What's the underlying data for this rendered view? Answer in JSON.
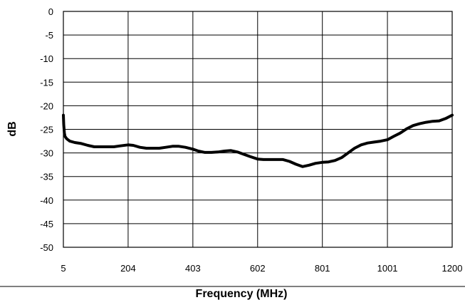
{
  "chart_data": {
    "type": "line",
    "title": "",
    "xlabel": "Frequency (MHz)",
    "ylabel": "dB",
    "x_ticks": [
      "5",
      "204",
      "403",
      "602",
      "801",
      "1001",
      "1200"
    ],
    "x_tick_values": [
      5,
      204,
      403,
      602,
      801,
      1001,
      1200
    ],
    "y_ticks": [
      "0",
      "-5",
      "-10",
      "-15",
      "-20",
      "-25",
      "-30",
      "-35",
      "-40",
      "-45",
      "-50"
    ],
    "y_tick_values": [
      0,
      -5,
      -10,
      -15,
      -20,
      -25,
      -30,
      -35,
      -40,
      -45,
      -50
    ],
    "xlim": [
      5,
      1200
    ],
    "ylim": [
      -50,
      0
    ],
    "grid": true,
    "legend": "none",
    "series": [
      {
        "color": "#000000",
        "x": [
          5,
          6,
          8,
          10,
          15,
          25,
          40,
          60,
          80,
          100,
          120,
          140,
          160,
          180,
          204,
          220,
          240,
          260,
          280,
          300,
          320,
          340,
          360,
          380,
          403,
          420,
          440,
          460,
          480,
          500,
          520,
          540,
          560,
          580,
          602,
          620,
          640,
          660,
          680,
          700,
          720,
          740,
          760,
          780,
          801,
          820,
          840,
          860,
          880,
          900,
          920,
          940,
          960,
          980,
          1001,
          1020,
          1040,
          1060,
          1080,
          1100,
          1120,
          1140,
          1160,
          1180,
          1200
        ],
        "y": [
          -22.0,
          -24.0,
          -25.8,
          -26.5,
          -27.0,
          -27.5,
          -27.8,
          -28.0,
          -28.4,
          -28.7,
          -28.7,
          -28.7,
          -28.7,
          -28.5,
          -28.3,
          -28.4,
          -28.8,
          -29.0,
          -29.0,
          -29.0,
          -28.8,
          -28.6,
          -28.6,
          -28.8,
          -29.2,
          -29.6,
          -29.9,
          -29.9,
          -29.8,
          -29.6,
          -29.5,
          -29.8,
          -30.3,
          -30.8,
          -31.3,
          -31.4,
          -31.4,
          -31.4,
          -31.4,
          -31.8,
          -32.4,
          -32.9,
          -32.6,
          -32.2,
          -32.0,
          -31.9,
          -31.6,
          -31.0,
          -30.0,
          -29.0,
          -28.3,
          -27.9,
          -27.7,
          -27.5,
          -27.2,
          -26.5,
          -25.8,
          -24.9,
          -24.2,
          -23.8,
          -23.5,
          -23.3,
          -23.2,
          -22.7,
          -22.0
        ]
      }
    ]
  }
}
